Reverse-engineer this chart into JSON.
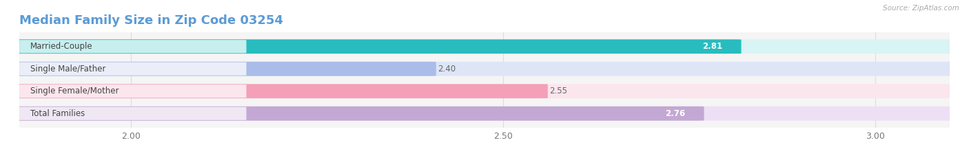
{
  "title": "Median Family Size in Zip Code 03254",
  "source": "Source: ZipAtlas.com",
  "categories": [
    "Married-Couple",
    "Single Male/Father",
    "Single Female/Mother",
    "Total Families"
  ],
  "values": [
    2.81,
    2.4,
    2.55,
    2.76
  ],
  "bar_colors": [
    "#29BCBE",
    "#AABCE8",
    "#F4A0B8",
    "#C3A8D4"
  ],
  "bar_bg_colors": [
    "#d8f4f4",
    "#dde5f7",
    "#fce6ee",
    "#ede0f4"
  ],
  "label_fg_colors": [
    "#29BCBE",
    "#AABCE8",
    "#F4A0B8",
    "#C3A8D4"
  ],
  "value_colors": [
    "#ffffff",
    "#555555",
    "#555555",
    "#ffffff"
  ],
  "xlim": [
    1.85,
    3.1
  ],
  "xmin": 1.85,
  "xmax": 3.1,
  "xticks": [
    2.0,
    2.5,
    3.0
  ],
  "xtick_labels": [
    "2.00",
    "2.50",
    "3.00"
  ],
  "title_color": "#5b9bd5",
  "source_color": "#aaaaaa",
  "title_fontsize": 13,
  "bar_height": 0.62,
  "value_fontsize": 8.5,
  "label_fontsize": 8.5,
  "tick_fontsize": 9,
  "background_color": "#f5f5f5",
  "grid_color": "#dddddd"
}
